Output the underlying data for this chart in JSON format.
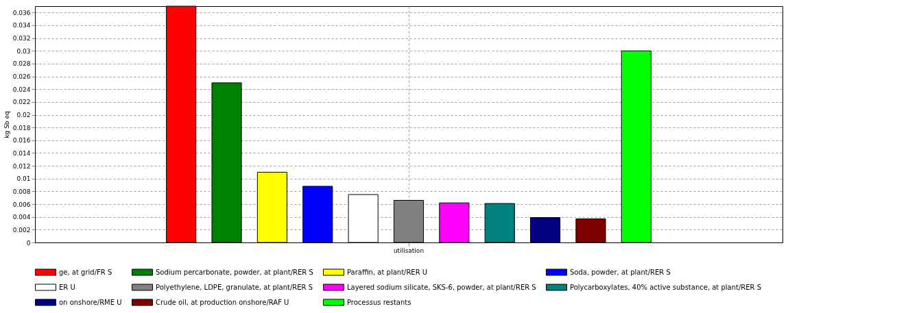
{
  "chart_data": {
    "type": "bar",
    "ylabel": "kg Sb eq",
    "categories": [
      "utilisation"
    ],
    "series": [
      {
        "name": "ge, at grid/FR S",
        "color": "#ff0000",
        "values": [
          0.037
        ]
      },
      {
        "name": "Sodium percarbonate, powder, at plant/RER S",
        "color": "#008000",
        "values": [
          0.025
        ]
      },
      {
        "name": "Paraffin, at plant/RER U",
        "color": "#ffff00",
        "values": [
          0.011
        ]
      },
      {
        "name": "Soda, powder, at plant/RER S",
        "color": "#0000ff",
        "values": [
          0.0088
        ]
      },
      {
        "name": "ER U",
        "color": "#ffffff",
        "values": [
          0.0075
        ]
      },
      {
        "name": "Polyethylene, LDPE, granulate, at plant/RER S",
        "color": "#808080",
        "values": [
          0.0066
        ]
      },
      {
        "name": "Layered sodium silicate, SKS-6, powder, at plant/RER S",
        "color": "#ff00ff",
        "values": [
          0.0062
        ]
      },
      {
        "name": "Polycarboxylates, 40% active substance, at plant/RER S",
        "color": "#008080",
        "values": [
          0.0061
        ]
      },
      {
        "name": "on onshore/RME U",
        "color": "#000080",
        "values": [
          0.0039
        ]
      },
      {
        "name": "Crude oil, at production onshore/RAF U",
        "color": "#800000",
        "values": [
          0.0037
        ]
      },
      {
        "name": "Processus restants",
        "color": "#00ff00",
        "values": [
          0.03
        ]
      }
    ],
    "ylim": [
      0,
      0.037
    ],
    "yticks": [
      0,
      0.002,
      0.004,
      0.006,
      0.008,
      0.01,
      0.012,
      0.014,
      0.016,
      0.018,
      0.02,
      0.022,
      0.024,
      0.026,
      0.028,
      0.03,
      0.032,
      0.034,
      0.036
    ],
    "grid": true,
    "legend": "bottom"
  }
}
